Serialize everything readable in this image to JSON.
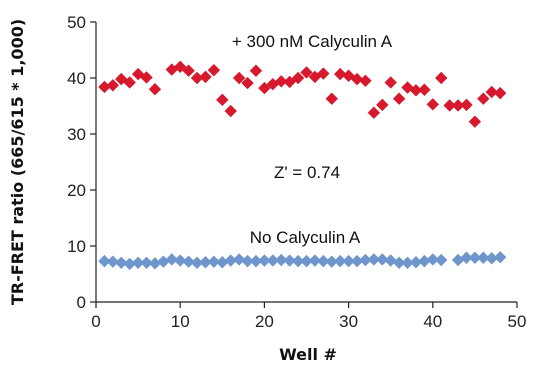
{
  "chart_data": {
    "type": "scatter",
    "xlabel": "Well #",
    "ylabel": "TR-FRET ratio (665/615 * 1,000)",
    "xlim": [
      0,
      50
    ],
    "ylim": [
      0,
      50
    ],
    "xticks": [
      0,
      10,
      20,
      30,
      40,
      50
    ],
    "yticks": [
      0,
      10,
      20,
      30,
      40,
      50
    ],
    "grid": false,
    "annotations": {
      "upper": "+ 300 nM Calyculin A",
      "zprime": "Z' = 0.74",
      "lower": "No Calyculin A"
    },
    "series": [
      {
        "color": "#d7192e",
        "marker": "diamond",
        "x": [
          1,
          2,
          3,
          4,
          5,
          6,
          7,
          9,
          10,
          11,
          12,
          13,
          14,
          15,
          16,
          17,
          18,
          19,
          20,
          21,
          22,
          23,
          24,
          25,
          26,
          27,
          28,
          29,
          30,
          31,
          32,
          33,
          34,
          35,
          36,
          37,
          38,
          39,
          40,
          41,
          42,
          43,
          44,
          45,
          46,
          47,
          48
        ],
        "y": [
          38.4,
          38.7,
          39.8,
          39.2,
          40.7,
          40.1,
          38.0,
          41.5,
          42.0,
          41.3,
          40.0,
          40.2,
          41.4,
          36.1,
          34.1,
          40.0,
          39.1,
          41.3,
          38.2,
          38.9,
          39.4,
          39.3,
          40.0,
          41.0,
          40.2,
          40.8,
          36.3,
          40.7,
          40.4,
          39.8,
          39.5,
          33.8,
          35.2,
          39.2,
          36.3,
          38.3,
          37.8,
          37.9,
          35.3,
          40.0,
          35.1,
          35.1,
          35.2,
          32.2,
          36.3,
          37.5,
          37.3
        ]
      },
      {
        "color": "#6f96cc",
        "marker": "diamond",
        "x": [
          1,
          2,
          3,
          4,
          5,
          6,
          7,
          8,
          9,
          10,
          11,
          12,
          13,
          14,
          15,
          16,
          17,
          18,
          19,
          20,
          21,
          22,
          23,
          24,
          25,
          26,
          27,
          28,
          29,
          30,
          31,
          32,
          33,
          34,
          35,
          36,
          37,
          38,
          39,
          40,
          41,
          43,
          44,
          45,
          46,
          47,
          48
        ],
        "y": [
          7.3,
          7.2,
          7.0,
          6.8,
          7.0,
          7.0,
          6.9,
          7.2,
          7.6,
          7.4,
          7.2,
          7.0,
          7.1,
          7.2,
          7.1,
          7.4,
          7.6,
          7.3,
          7.3,
          7.4,
          7.4,
          7.5,
          7.4,
          7.3,
          7.3,
          7.4,
          7.3,
          7.2,
          7.3,
          7.3,
          7.3,
          7.5,
          7.6,
          7.6,
          7.4,
          7.0,
          7.0,
          7.1,
          7.3,
          7.6,
          7.5,
          7.5,
          7.9,
          7.9,
          7.9,
          7.8,
          8.0
        ]
      }
    ]
  }
}
